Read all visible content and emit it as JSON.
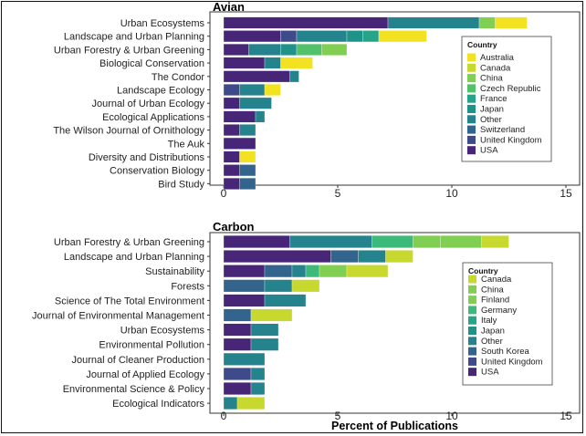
{
  "x_axis_label": "Percent of Publications",
  "colors": {
    "Australia": "#f2e221",
    "Canada": "#c7d92e",
    "China": "#80cf52",
    "Czech Republic": "#52c26a",
    "Finland": "#80cf52",
    "Germany": "#3dba7a",
    "France": "#26a487",
    "Italy": "#26a487",
    "Japan": "#1f938a",
    "Other": "#25838e",
    "Switzerland": "#32648e",
    "South Korea": "#32648e",
    "United Kingdom": "#3f4a8a",
    "USA": "#482677"
  },
  "chart_data": [
    {
      "type": "bar",
      "orientation": "horizontal",
      "stacked": true,
      "title": "Avian",
      "xlabel": "",
      "xlim": [
        0,
        15
      ],
      "xticks": [
        0,
        5,
        10,
        15
      ],
      "legend_title": "Country",
      "legend_position": "right",
      "legend_entries": [
        "Australia",
        "Canada",
        "China",
        "Czech Republic",
        "France",
        "Japan",
        "Other",
        "Switzerland",
        "United Kingdom",
        "USA"
      ],
      "categories": [
        "Urban Ecosystems",
        "Landscape and Urban Planning",
        "Urban Forestry & Urban Greening",
        "Biological Conservation",
        "The Condor",
        "Landscape Ecology",
        "Journal of Urban Ecology",
        "Ecological Applications",
        "The Wilson Journal of Ornithology",
        "The Auk",
        "Diversity and Distributions",
        "Conservation Biology",
        "Bird Study"
      ],
      "series": [
        {
          "name": "USA",
          "values": [
            7.2,
            2.5,
            1.1,
            1.8,
            2.9,
            0,
            0.7,
            1.4,
            0.7,
            1.4,
            0.7,
            0.7,
            0.7
          ]
        },
        {
          "name": "United Kingdom",
          "values": [
            0,
            0.7,
            0,
            0,
            0,
            0.7,
            0,
            0,
            0,
            0,
            0,
            0,
            0
          ]
        },
        {
          "name": "Switzerland",
          "values": [
            0,
            0,
            0,
            0,
            0,
            0,
            0,
            0,
            0,
            0,
            0,
            0.7,
            0.7
          ]
        },
        {
          "name": "Other",
          "values": [
            4.0,
            2.2,
            1.4,
            0.7,
            0.4,
            1.1,
            1.4,
            0.4,
            0.7,
            0,
            0,
            0,
            0
          ]
        },
        {
          "name": "Japan",
          "values": [
            0,
            0.7,
            0.7,
            0,
            0,
            0,
            0,
            0,
            0,
            0,
            0,
            0,
            0
          ]
        },
        {
          "name": "France",
          "values": [
            0,
            0.7,
            0,
            0,
            0,
            0,
            0,
            0,
            0,
            0,
            0,
            0,
            0
          ]
        },
        {
          "name": "Czech Republic",
          "values": [
            0,
            0,
            1.1,
            0,
            0,
            0,
            0,
            0,
            0,
            0,
            0,
            0,
            0
          ]
        },
        {
          "name": "China",
          "values": [
            0.7,
            0,
            1.1,
            0,
            0,
            0,
            0,
            0,
            0,
            0,
            0,
            0,
            0
          ]
        },
        {
          "name": "Canada",
          "values": [
            0,
            0,
            0,
            0,
            0,
            0,
            0,
            0,
            0,
            0,
            0,
            0,
            0
          ]
        },
        {
          "name": "Australia",
          "values": [
            1.4,
            2.1,
            0,
            1.4,
            0,
            0.7,
            0,
            0,
            0,
            0,
            0.7,
            0,
            0
          ]
        }
      ]
    },
    {
      "type": "bar",
      "orientation": "horizontal",
      "stacked": true,
      "title": "Carbon",
      "xlabel": "Percent of Publications",
      "xlim": [
        0,
        15
      ],
      "xticks": [
        0,
        5,
        10,
        15
      ],
      "legend_title": "Country",
      "legend_position": "right",
      "legend_entries": [
        "Canada",
        "China",
        "Finland",
        "Germany",
        "Italy",
        "Japan",
        "Other",
        "South Korea",
        "United Kingdom",
        "USA"
      ],
      "categories": [
        "Urban Forestry & Urban Greening",
        "Landscape and Urban Planning",
        "Sustainability",
        "Forests",
        "Science of The Total Environment",
        "Journal of Environmental Management",
        "Urban Ecosystems",
        "Environmental Pollution",
        "Journal of Cleaner Production",
        "Journal of Applied Ecology",
        "Environmental Science & Policy",
        "Ecological Indicators"
      ],
      "series": [
        {
          "name": "USA",
          "values": [
            2.9,
            4.7,
            1.8,
            0,
            1.8,
            0,
            1.2,
            1.2,
            0,
            0,
            1.2,
            0
          ]
        },
        {
          "name": "United Kingdom",
          "values": [
            0,
            0,
            0,
            0,
            0,
            0,
            0,
            0,
            0,
            1.2,
            0,
            0
          ]
        },
        {
          "name": "South Korea",
          "values": [
            0,
            1.2,
            1.2,
            1.8,
            0,
            1.2,
            0,
            0,
            0,
            0,
            0,
            0
          ]
        },
        {
          "name": "Other",
          "values": [
            3.6,
            1.2,
            0.6,
            1.2,
            1.8,
            0,
            1.2,
            1.2,
            1.8,
            0.6,
            0.6,
            0.6
          ]
        },
        {
          "name": "Japan",
          "values": [
            0,
            0,
            0,
            0,
            0,
            0,
            0,
            0,
            0,
            0,
            0,
            0
          ]
        },
        {
          "name": "Italy",
          "values": [
            0,
            0,
            0,
            0,
            0,
            0,
            0,
            0,
            0,
            0,
            0,
            0
          ]
        },
        {
          "name": "Germany",
          "values": [
            1.8,
            0,
            0.6,
            0,
            0,
            0,
            0,
            0,
            0,
            0,
            0,
            0
          ]
        },
        {
          "name": "Finland",
          "values": [
            1.2,
            0,
            1.2,
            0,
            0,
            0,
            0,
            0,
            0,
            0,
            0,
            0
          ]
        },
        {
          "name": "China",
          "values": [
            1.8,
            0,
            0,
            0,
            0,
            0,
            0,
            0,
            0,
            0,
            0,
            0
          ]
        },
        {
          "name": "Canada",
          "values": [
            1.2,
            1.2,
            1.8,
            1.2,
            0,
            1.8,
            0,
            0,
            0,
            0,
            0,
            1.2
          ]
        }
      ]
    }
  ]
}
